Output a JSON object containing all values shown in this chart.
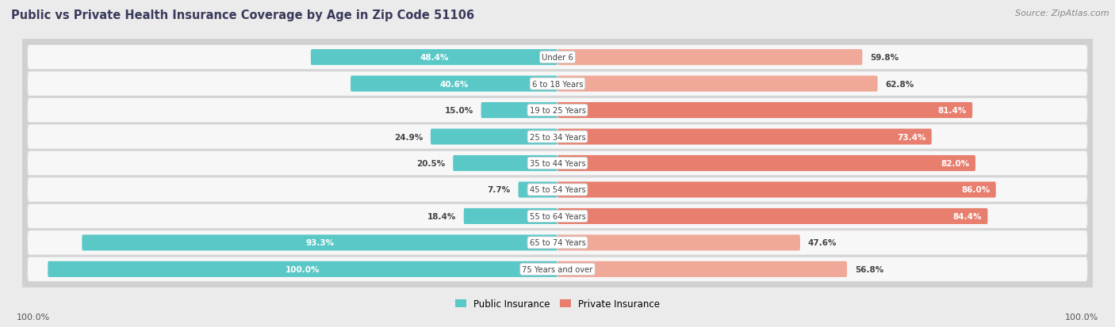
{
  "title": "Public vs Private Health Insurance Coverage by Age in Zip Code 51106",
  "source": "Source: ZipAtlas.com",
  "categories": [
    "Under 6",
    "6 to 18 Years",
    "19 to 25 Years",
    "25 to 34 Years",
    "35 to 44 Years",
    "45 to 54 Years",
    "55 to 64 Years",
    "65 to 74 Years",
    "75 Years and over"
  ],
  "public_values": [
    48.4,
    40.6,
    15.0,
    24.9,
    20.5,
    7.7,
    18.4,
    93.3,
    100.0
  ],
  "private_values": [
    59.8,
    62.8,
    81.4,
    73.4,
    82.0,
    86.0,
    84.4,
    47.6,
    56.8
  ],
  "public_color": "#5bc8c8",
  "private_color_dark": "#e87e6e",
  "private_color_light": "#f0a898",
  "bg_color": "#ebebeb",
  "row_bg_color": "#f7f7f7",
  "row_edge_color": "#d8d8d8",
  "title_color": "#3a3a5c",
  "source_color": "#888888",
  "max_val": 100.0,
  "legend_public": "Public Insurance",
  "legend_private": "Private Insurance",
  "public_label_threshold": 40,
  "private_dark_threshold": 65
}
